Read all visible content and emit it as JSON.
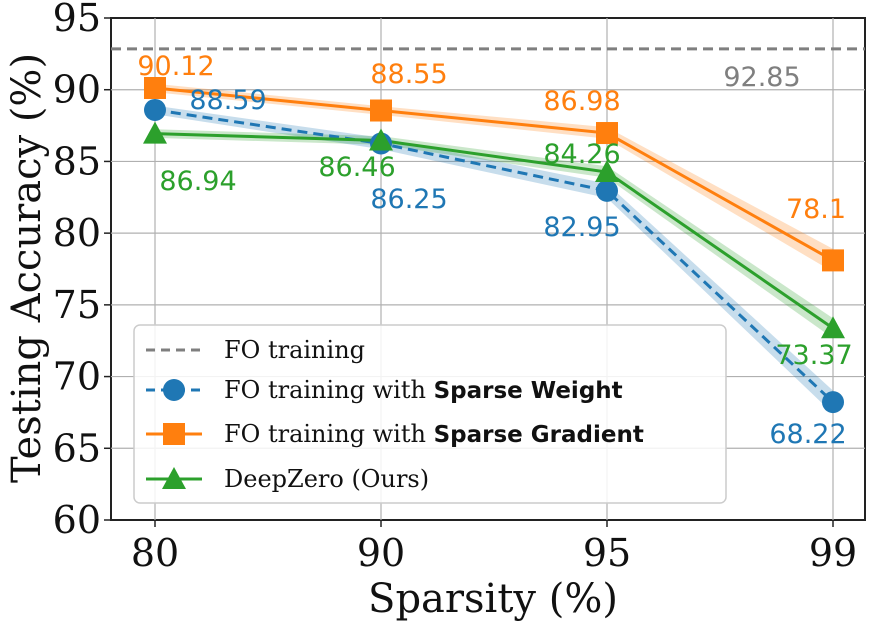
{
  "chart_data": {
    "type": "line",
    "xlabel": "Sparsity (%)",
    "ylabel": "Testing Accuracy (%)",
    "categories": [
      "80",
      "90",
      "95",
      "99"
    ],
    "ylim": [
      60,
      95
    ],
    "yticks": [
      60,
      65,
      70,
      75,
      80,
      85,
      90,
      95
    ],
    "grid": true,
    "legend_position": "lower-left",
    "reference_line": {
      "name": "FO training",
      "value": 92.85,
      "label": "92.85",
      "color": "#7f7f7f",
      "style": "dashed"
    },
    "series": [
      {
        "name": "FO training with Sparse Weight",
        "name_prefix": "FO training with ",
        "name_bold": "Sparse Weight",
        "color": "#1f77b4",
        "marker": "circle",
        "style": "dashed",
        "values": [
          88.59,
          86.25,
          82.95,
          68.22
        ],
        "labels": [
          "88.59",
          "86.25",
          "82.95",
          "68.22"
        ],
        "band": [
          0.3,
          0.4,
          0.5,
          0.8
        ]
      },
      {
        "name": "FO training with Sparse Gradient",
        "name_prefix": "FO training with ",
        "name_bold": "Sparse Gradient",
        "color": "#ff7f0e",
        "marker": "square",
        "style": "solid",
        "values": [
          90.12,
          88.55,
          86.98,
          78.1
        ],
        "labels": [
          "90.12",
          "88.55",
          "86.98",
          "78.1"
        ],
        "band": [
          0.3,
          0.3,
          0.4,
          0.8
        ]
      },
      {
        "name": "DeepZero (Ours)",
        "name_prefix": "DeepZero (Ours)",
        "name_bold": "",
        "color": "#2ca02c",
        "marker": "triangle",
        "style": "solid",
        "values": [
          86.94,
          86.46,
          84.26,
          73.37
        ],
        "labels": [
          "86.94",
          "86.46",
          "84.26",
          "73.37"
        ],
        "band": [
          0.3,
          0.3,
          0.4,
          0.7
        ]
      }
    ]
  }
}
